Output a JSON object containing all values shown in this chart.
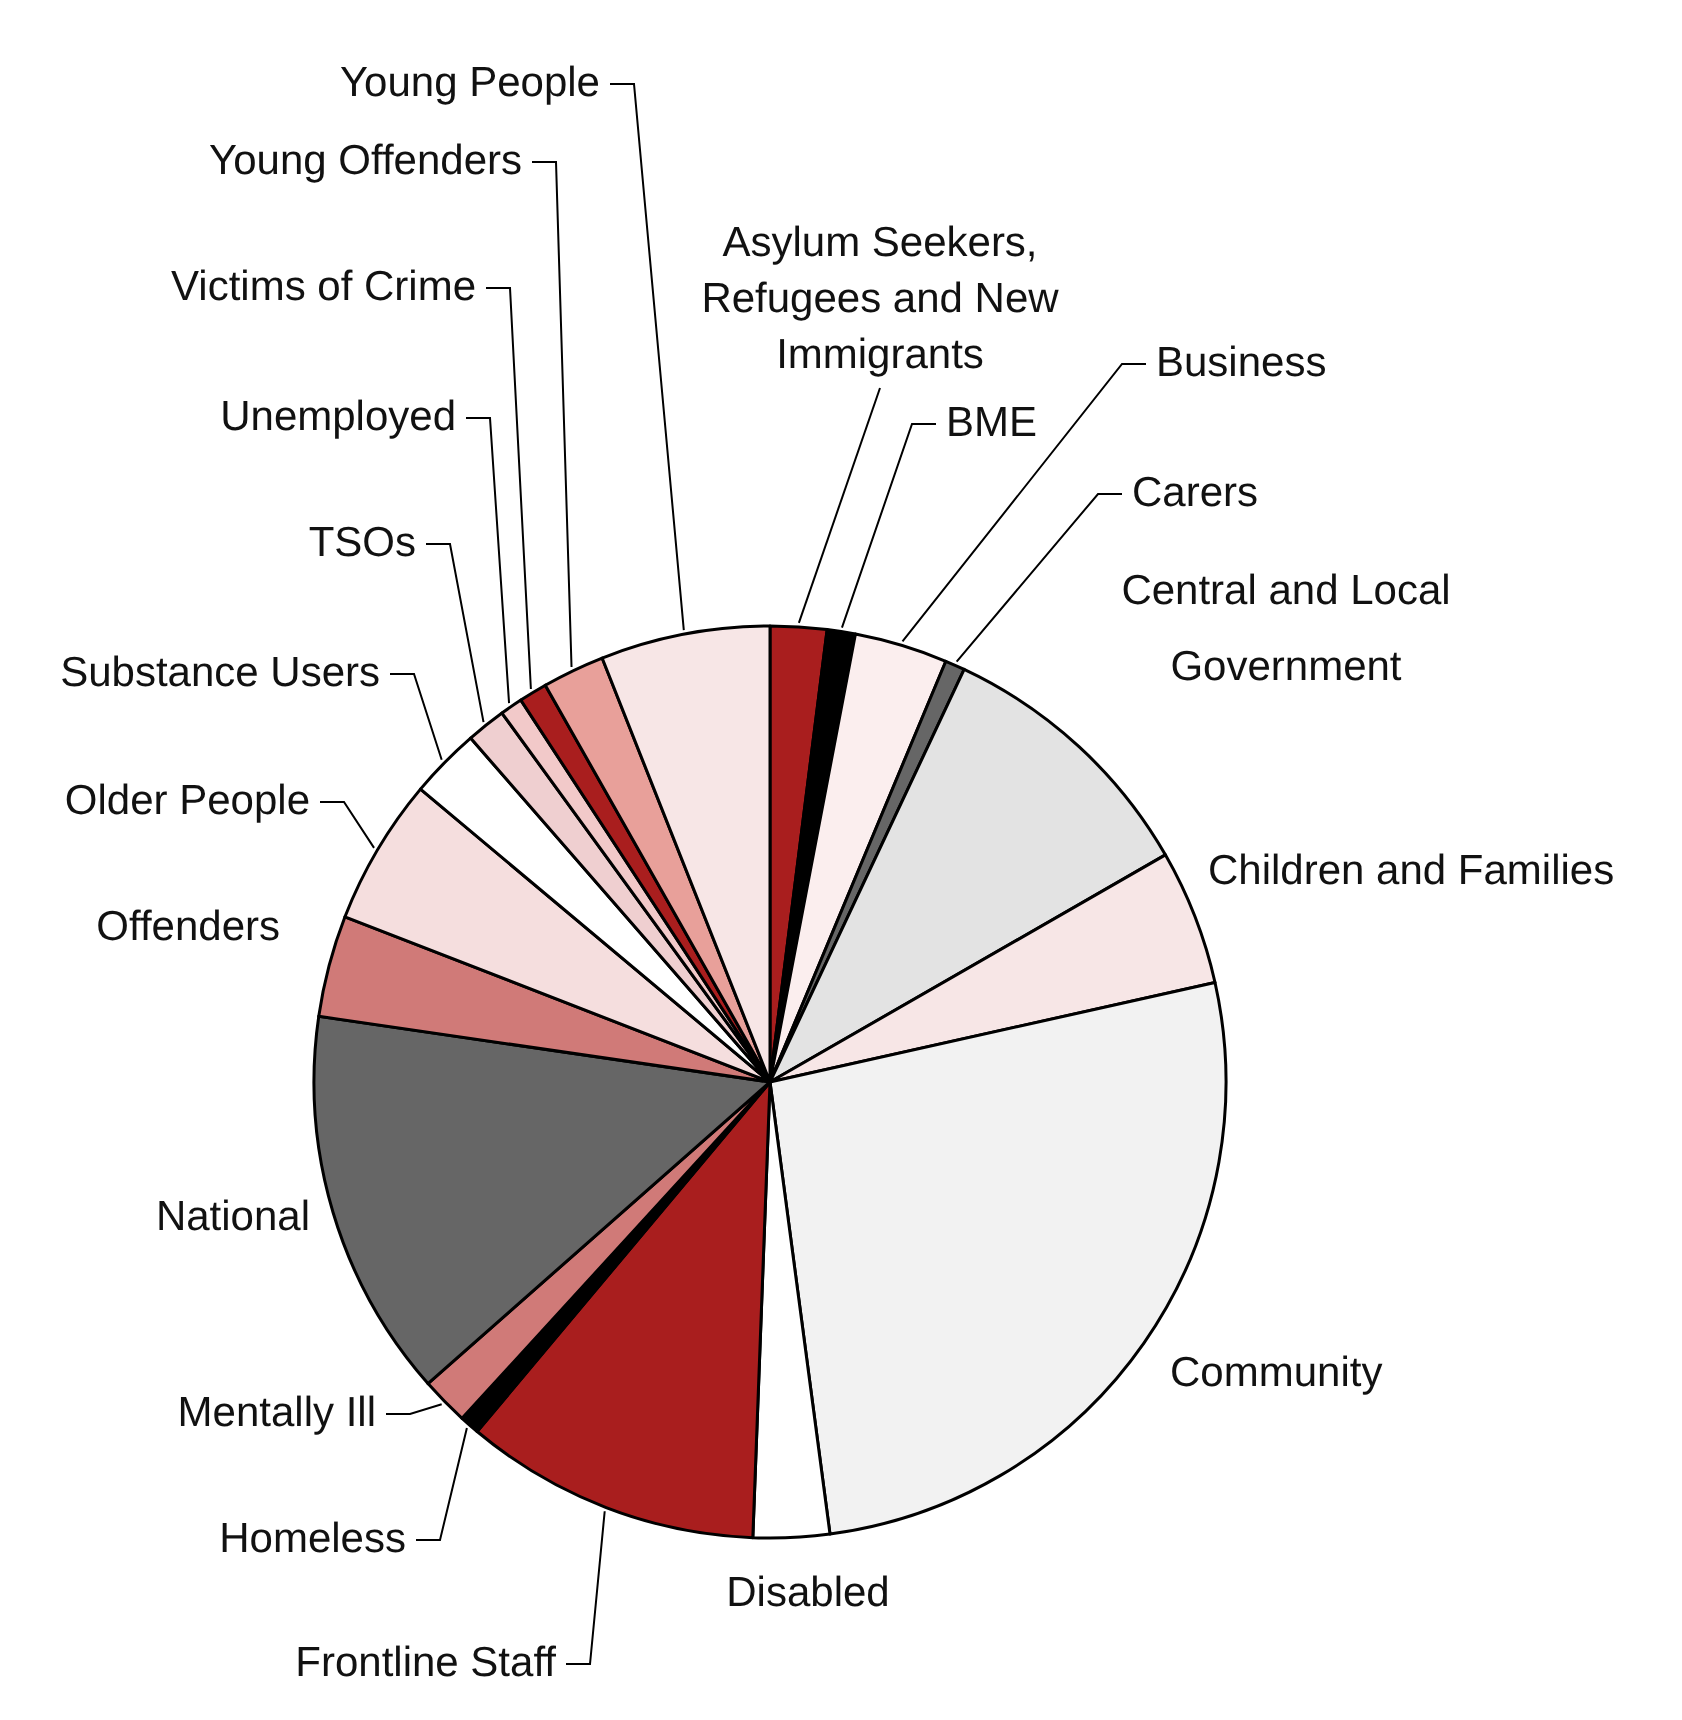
{
  "chart_data": {
    "type": "pie",
    "categories": [
      "Asylum Seekers, Refugees and New Immigrants",
      "BME",
      "Business",
      "Carers",
      "Central and Local Government",
      "Children and Families",
      "Community",
      "Disabled",
      "Frontline Staff",
      "Homeless",
      "Mentally Ill",
      "National",
      "Offenders",
      "Older People",
      "Substance Users",
      "TSOs",
      "Unemployed",
      "Victims of Crime",
      "Young Offenders",
      "Young People"
    ],
    "values": [
      2,
      1,
      3.3,
      0.7,
      9.7,
      4.8,
      26.4,
      2.7,
      10.5,
      0.7,
      1.7,
      13.8,
      3.6,
      5.2,
      2.5,
      1.4,
      0.8,
      1,
      2.2,
      6
    ],
    "colors": [
      "#a91e1e",
      "#000000",
      "#fbeeee",
      "#666666",
      "#e3e3e3",
      "#f7e6e6",
      "#f2f2f2",
      "#ffffff",
      "#a91e1e",
      "#000000",
      "#d07a78",
      "#666666",
      "#d07a78",
      "#f5dede",
      "#ffffff",
      "#efcfd0",
      "#f2c9c9",
      "#a91e1e",
      "#e8a09a",
      "#f7e6e6"
    ]
  }
}
